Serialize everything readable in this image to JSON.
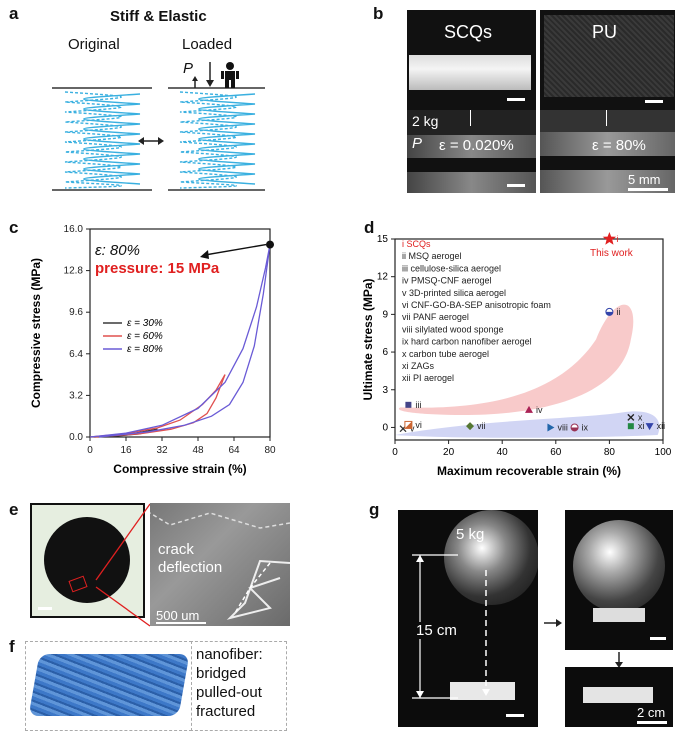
{
  "panel_a": {
    "letter": "a",
    "title": "Stiff & Elastic",
    "label_original": "Original",
    "label_loaded": "Loaded",
    "load_symbol": "P"
  },
  "panel_b": {
    "letter": "b",
    "label_scqs": "SCQs",
    "label_pu": "PU",
    "weight": "2 kg",
    "load_symbol": "P",
    "strain_scqs": "ε = 0.020%",
    "strain_pu": "ε = 80%",
    "scale": "5 mm"
  },
  "panel_c": {
    "letter": "c",
    "annotation_strain": "ε: 80%",
    "annotation_pressure": "pressure: 15 MPa",
    "chart_data": {
      "type": "line",
      "xlabel": "Compressive strain (%)",
      "ylabel": "Compressive stress (MPa)",
      "xlim": [
        0,
        80
      ],
      "ylim": [
        0,
        16.0
      ],
      "xticks": [
        "0",
        "16",
        "32",
        "48",
        "64",
        "80"
      ],
      "yticks": [
        "0.0",
        "3.2",
        "6.4",
        "9.6",
        "12.8",
        "16.0"
      ],
      "legend_position": "center-left",
      "series": [
        {
          "name": "ε = 30%",
          "color": "#3a3a3a",
          "loading": [
            [
              0,
              0
            ],
            [
              10,
              0.12
            ],
            [
              20,
              0.3
            ],
            [
              30,
              0.6
            ]
          ],
          "unloading": [
            [
              30,
              0.6
            ],
            [
              22,
              0.25
            ],
            [
              12,
              0.08
            ],
            [
              2,
              0
            ]
          ]
        },
        {
          "name": "ε = 60%",
          "color": "#e0504f",
          "loading": [
            [
              0,
              0
            ],
            [
              15,
              0.25
            ],
            [
              30,
              0.7
            ],
            [
              40,
              1.3
            ],
            [
              50,
              2.5
            ],
            [
              56,
              3.6
            ],
            [
              60,
              4.8
            ]
          ],
          "unloading": [
            [
              60,
              4.8
            ],
            [
              56,
              3.0
            ],
            [
              52,
              1.8
            ],
            [
              46,
              1.1
            ],
            [
              36,
              0.6
            ],
            [
              22,
              0.25
            ],
            [
              2,
              0
            ]
          ]
        },
        {
          "name": "ε = 80%",
          "color": "#6a5bd6",
          "loading": [
            [
              0,
              0
            ],
            [
              16,
              0.3
            ],
            [
              32,
              0.9
            ],
            [
              48,
              2.2
            ],
            [
              60,
              4.2
            ],
            [
              68,
              6.8
            ],
            [
              74,
              10.0
            ],
            [
              78,
              13.0
            ],
            [
              80,
              14.8
            ]
          ],
          "unloading": [
            [
              80,
              14.8
            ],
            [
              77,
              11.0
            ],
            [
              73,
              7.0
            ],
            [
              68,
              4.2
            ],
            [
              62,
              2.5
            ],
            [
              54,
              1.6
            ],
            [
              42,
              0.9
            ],
            [
              26,
              0.4
            ],
            [
              4,
              0
            ]
          ]
        }
      ],
      "max_point": [
        80,
        14.8
      ]
    }
  },
  "panel_d": {
    "letter": "d",
    "this_work": "This work",
    "chart_data": {
      "type": "scatter",
      "xlabel": "Maximum recoverable strain (%)",
      "ylabel": "Ultimate stress (MPa)",
      "xlim": [
        0,
        100
      ],
      "ylim": [
        0,
        15
      ],
      "xticks": [
        "0",
        "20",
        "40",
        "60",
        "80",
        "100"
      ],
      "yticks": [
        "0",
        "3",
        "6",
        "9",
        "12",
        "15"
      ],
      "legend": [
        {
          "id": "i",
          "name": "SCQs",
          "color": "#e02020"
        },
        {
          "id": "ii",
          "name": "MSQ aerogel"
        },
        {
          "id": "iii",
          "name": "cellulose-silica aerogel"
        },
        {
          "id": "iv",
          "name": "PMSQ-CNF aerogel"
        },
        {
          "id": "v",
          "name": "3D-printed silica aerogel"
        },
        {
          "id": "vi",
          "name": "CNF-GO-BA-SEP anisotropic foam"
        },
        {
          "id": "vii",
          "name": "PANF aerogel"
        },
        {
          "id": "viii",
          "name": "silylated wood sponge"
        },
        {
          "id": "ix",
          "name": "hard carbon nanofiber aerogel"
        },
        {
          "id": "x",
          "name": "carbon tube aerogel"
        },
        {
          "id": "xi",
          "name": "ZAGs"
        },
        {
          "id": "xii",
          "name": "PI aerogel"
        }
      ],
      "points": [
        {
          "id": "i",
          "x": 80,
          "y": 15,
          "marker": "star",
          "color": "#e02020"
        },
        {
          "id": "ii",
          "x": 80,
          "y": 9.2,
          "marker": "circle-half",
          "color": "#3344aa"
        },
        {
          "id": "iii",
          "x": 5,
          "y": 1.8,
          "marker": "square",
          "color": "#444488"
        },
        {
          "id": "iv",
          "x": 50,
          "y": 1.4,
          "marker": "triangle",
          "color": "#aa2255"
        },
        {
          "id": "v",
          "x": 3,
          "y": -0.1,
          "marker": "x",
          "color": "#333333"
        },
        {
          "id": "vi",
          "x": 5,
          "y": 0.2,
          "marker": "square-split",
          "color": "#cc6633"
        },
        {
          "id": "vii",
          "x": 28,
          "y": 0.1,
          "marker": "diamond",
          "color": "#557733"
        },
        {
          "id": "viii",
          "x": 58,
          "y": 0.0,
          "marker": "triangle-right",
          "color": "#2266aa"
        },
        {
          "id": "ix",
          "x": 67,
          "y": 0.0,
          "marker": "circle-half",
          "color": "#993355"
        },
        {
          "id": "x",
          "x": 88,
          "y": 0.8,
          "marker": "x",
          "color": "#222222"
        },
        {
          "id": "xi",
          "x": 88,
          "y": 0.1,
          "marker": "square",
          "color": "#228844"
        },
        {
          "id": "xii",
          "x": 95,
          "y": 0.1,
          "marker": "triangle-down",
          "color": "#3344aa"
        }
      ]
    }
  },
  "panel_e": {
    "letter": "e",
    "crack_label": "crack\ndeflection",
    "scale": "500 um"
  },
  "panel_f": {
    "letter": "f",
    "nanofiber_label": "nanofiber:\nbridged\npulled-out\nfractured"
  },
  "panel_g": {
    "letter": "g",
    "weight": "5 kg",
    "height": "15 cm",
    "scale": "2 cm"
  }
}
